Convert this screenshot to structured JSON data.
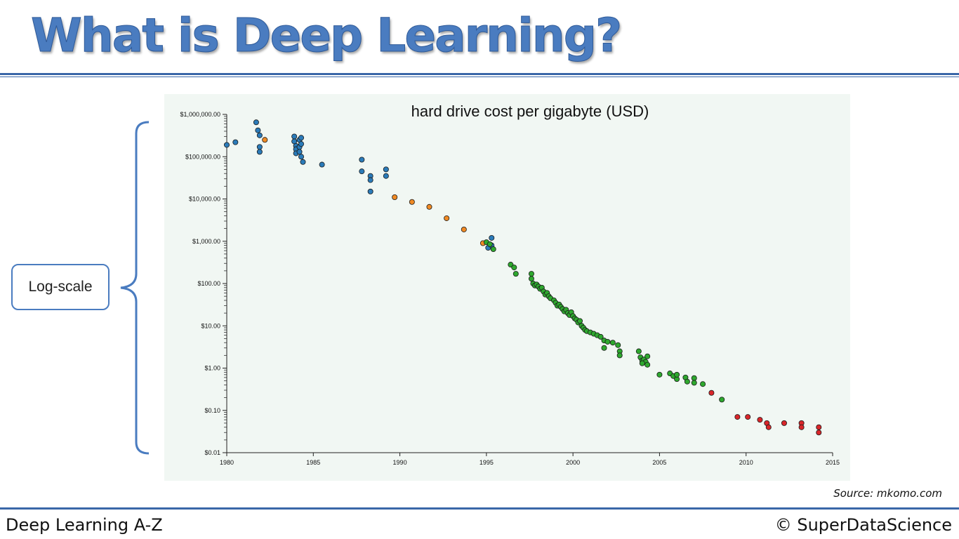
{
  "slide": {
    "title": "What is Deep Learning?",
    "annotation_label": "Log-scale",
    "source": "Source: mkomo.com",
    "footer_left": "Deep Learning A-Z",
    "footer_right": "© SuperDataScience"
  },
  "colors": {
    "accent": "#3a67a8",
    "title_text": "#4a7cc0",
    "plot_background": "#f1f7f3",
    "blue_series": "#2b7bb9",
    "orange_series": "#f08a24",
    "green_series": "#2ea82e",
    "red_series": "#d9262a"
  },
  "chart_data": {
    "type": "scatter",
    "title": "hard drive cost per gigabyte (USD)",
    "xlabel": "",
    "ylabel": "",
    "x_scale": "linear",
    "y_scale": "log",
    "xlim": [
      1980,
      2015
    ],
    "ylim": [
      0.01,
      1000000
    ],
    "grid": false,
    "legend": "none",
    "x_ticks": [
      "1980",
      "1985",
      "1990",
      "1995",
      "2000",
      "2005",
      "2010",
      "2015"
    ],
    "y_ticks": [
      "$1,000,000.00",
      "$100,000.00",
      "$10,000.00",
      "$1,000.00",
      "$100.00",
      "$10.00",
      "$1.00",
      "$0.10",
      "$0.01"
    ],
    "series": [
      {
        "color": "#2b7bb9",
        "points": [
          [
            1980.0,
            190000
          ],
          [
            1980.5,
            220000
          ],
          [
            1981.7,
            650000
          ],
          [
            1981.8,
            420000
          ],
          [
            1981.9,
            320000
          ],
          [
            1981.9,
            170000
          ],
          [
            1981.9,
            130000
          ],
          [
            1983.9,
            300000
          ],
          [
            1983.9,
            230000
          ],
          [
            1984.0,
            180000
          ],
          [
            1984.0,
            150000
          ],
          [
            1984.0,
            120000
          ],
          [
            1984.2,
            250000
          ],
          [
            1984.2,
            170000
          ],
          [
            1984.2,
            130000
          ],
          [
            1984.3,
            280000
          ],
          [
            1984.3,
            200000
          ],
          [
            1984.3,
            100000
          ],
          [
            1984.4,
            75000
          ],
          [
            1985.5,
            65000
          ],
          [
            1987.8,
            85000
          ],
          [
            1987.8,
            45000
          ],
          [
            1988.3,
            35000
          ],
          [
            1988.3,
            28000
          ],
          [
            1988.3,
            15000
          ],
          [
            1989.2,
            50000
          ],
          [
            1989.2,
            35000
          ],
          [
            1995.1,
            700
          ],
          [
            1995.3,
            1200
          ],
          [
            1995.3,
            800
          ]
        ]
      },
      {
        "color": "#f08a24",
        "points": [
          [
            1982.2,
            250000
          ],
          [
            1989.7,
            11000
          ],
          [
            1990.7,
            8500
          ],
          [
            1991.7,
            6500
          ],
          [
            1992.7,
            3500
          ],
          [
            1993.7,
            1900
          ],
          [
            1994.8,
            900
          ]
        ]
      },
      {
        "color": "#2ea82e",
        "points": [
          [
            1995.0,
            950
          ],
          [
            1995.2,
            850
          ],
          [
            1995.4,
            650
          ],
          [
            1996.4,
            280
          ],
          [
            1996.6,
            240
          ],
          [
            1996.7,
            170
          ],
          [
            1997.6,
            170
          ],
          [
            1997.6,
            130
          ],
          [
            1997.7,
            100
          ],
          [
            1997.8,
            90
          ],
          [
            1997.9,
            95
          ],
          [
            1998.0,
            85
          ],
          [
            1998.1,
            75
          ],
          [
            1998.2,
            80
          ],
          [
            1998.3,
            65
          ],
          [
            1998.4,
            55
          ],
          [
            1998.5,
            60
          ],
          [
            1998.6,
            50
          ],
          [
            1998.7,
            45
          ],
          [
            1998.9,
            40
          ],
          [
            1999.0,
            35
          ],
          [
            1999.1,
            30
          ],
          [
            1999.2,
            32
          ],
          [
            1999.3,
            28
          ],
          [
            1999.4,
            25
          ],
          [
            1999.5,
            22
          ],
          [
            1999.6,
            24
          ],
          [
            1999.7,
            20
          ],
          [
            1999.8,
            18
          ],
          [
            1999.9,
            21
          ],
          [
            2000.0,
            17
          ],
          [
            2000.1,
            15
          ],
          [
            2000.2,
            14
          ],
          [
            2000.3,
            12
          ],
          [
            2000.4,
            13
          ],
          [
            2000.5,
            10
          ],
          [
            2000.6,
            9
          ],
          [
            2000.7,
            8
          ],
          [
            2000.8,
            7.5
          ],
          [
            2001.0,
            7
          ],
          [
            2001.2,
            6.5
          ],
          [
            2001.4,
            6
          ],
          [
            2001.6,
            5.5
          ],
          [
            2001.8,
            4.5
          ],
          [
            2002.0,
            4.2
          ],
          [
            2002.3,
            4
          ],
          [
            2002.6,
            3.5
          ],
          [
            2002.7,
            2.5
          ],
          [
            2002.7,
            2
          ],
          [
            2001.8,
            3
          ],
          [
            2003.8,
            2.5
          ],
          [
            2003.9,
            1.8
          ],
          [
            2004.0,
            1.5
          ],
          [
            2004.1,
            1.6
          ],
          [
            2004.2,
            1.4
          ],
          [
            2004.3,
            1.2
          ],
          [
            2004.3,
            1.9
          ],
          [
            2004.0,
            1.3
          ],
          [
            2005.0,
            0.7
          ],
          [
            2005.6,
            0.75
          ],
          [
            2005.8,
            0.65
          ],
          [
            2006.0,
            0.55
          ],
          [
            2006.0,
            0.7
          ],
          [
            2006.5,
            0.6
          ],
          [
            2006.6,
            0.48
          ],
          [
            2007.0,
            0.58
          ],
          [
            2007.0,
            0.45
          ],
          [
            2007.5,
            0.42
          ],
          [
            2008.6,
            0.18
          ]
        ]
      },
      {
        "color": "#d9262a",
        "points": [
          [
            2008.0,
            0.26
          ],
          [
            2009.5,
            0.07
          ],
          [
            2010.1,
            0.07
          ],
          [
            2010.8,
            0.06
          ],
          [
            2011.2,
            0.05
          ],
          [
            2011.3,
            0.04
          ],
          [
            2012.2,
            0.05
          ],
          [
            2013.2,
            0.05
          ],
          [
            2013.2,
            0.04
          ],
          [
            2014.2,
            0.04
          ],
          [
            2014.2,
            0.03
          ]
        ]
      }
    ]
  }
}
